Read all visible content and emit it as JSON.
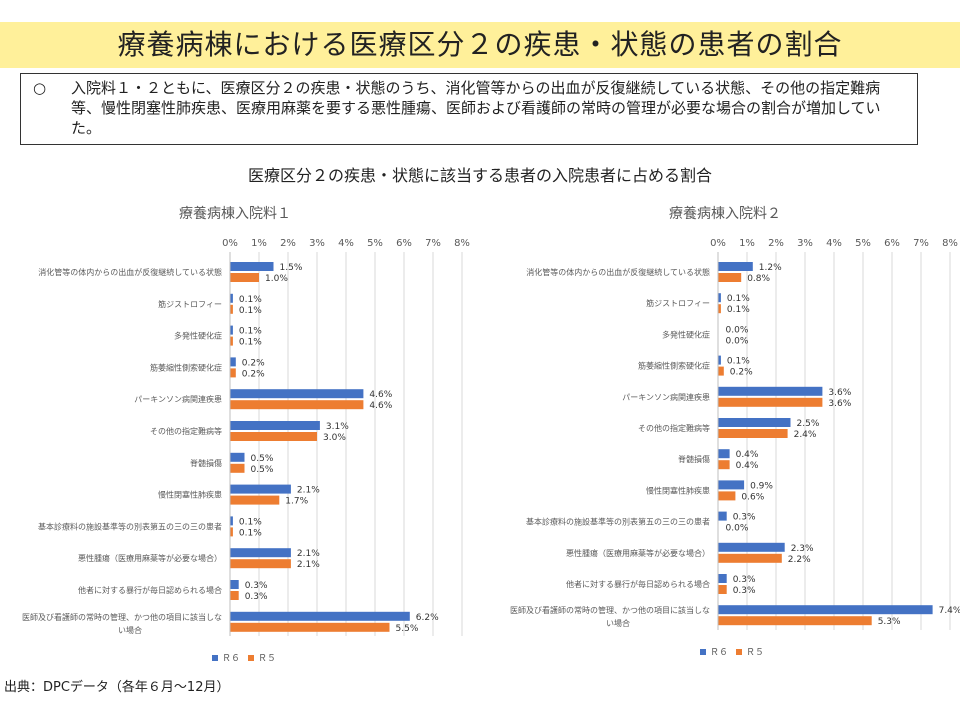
{
  "title": "療養病棟における医療区分２の疾患・状態の患者の割合",
  "note": {
    "bullet": "○",
    "text": "入院料１・２ともに、医療区分２の疾患・状態のうち、消化管等からの出血が反復継続している状態、その他の指定難病等、慢性閉塞性肺疾患、医療用麻薬を要する悪性腫瘍、医師および看護師の常時の管理が必要な場合の割合が増加していた。"
  },
  "main_caption": "医療区分２の疾患・状態に該当する患者の入院患者に占める割合",
  "source": "出典：DPCデータ（各年６月～12月）",
  "colors": {
    "r6": "#4472c4",
    "r5": "#ed7d31",
    "grid": "#d9d9d9",
    "axis_text": "#595959"
  },
  "chart_data": [
    {
      "type": "bar",
      "orientation": "horizontal",
      "title": "療養病棟入院料１",
      "xlim": [
        0,
        8
      ],
      "x_ticks": [
        "0%",
        "1%",
        "2%",
        "3%",
        "4%",
        "5%",
        "6%",
        "7%",
        "8%"
      ],
      "categories": [
        [
          "消化管等の体内からの出血が反復継続している状態"
        ],
        [
          "筋ジストロフィー"
        ],
        [
          "多発性硬化症"
        ],
        [
          "筋萎縮性側索硬化症"
        ],
        [
          "パーキンソン病関連疾患"
        ],
        [
          "その他の指定難病等"
        ],
        [
          "脊髄損傷"
        ],
        [
          "慢性閉塞性肺疾患"
        ],
        [
          "基本診療料の施設基準等の別表第五の三の三の患者"
        ],
        [
          "悪性腫瘍（医療用麻薬等が必要な場合）"
        ],
        [
          "他者に対する暴行が毎日認められる場合"
        ],
        [
          "医師及び看護師の常時の管理、かつ他の項目に該当しな",
          "い場合"
        ]
      ],
      "series": [
        {
          "name": "Ｒ６",
          "values": [
            1.5,
            0.1,
            0.1,
            0.2,
            4.6,
            3.1,
            0.5,
            2.1,
            0.1,
            2.1,
            0.3,
            6.2
          ],
          "labels": [
            "1.5%",
            "0.1%",
            "0.1%",
            "0.2%",
            "4.6%",
            "3.1%",
            "0.5%",
            "2.1%",
            "0.1%",
            "2.1%",
            "0.3%",
            "6.2%"
          ]
        },
        {
          "name": "Ｒ５",
          "values": [
            1.0,
            0.1,
            0.1,
            0.2,
            4.6,
            3.0,
            0.5,
            1.7,
            0.1,
            2.1,
            0.3,
            5.5
          ],
          "labels": [
            "1.0%",
            "0.1%",
            "0.1%",
            "0.2%",
            "4.6%",
            "3.0%",
            "0.5%",
            "1.7%",
            "0.1%",
            "2.1%",
            "0.3%",
            "5.5%"
          ]
        }
      ],
      "legend": "bottom-left",
      "grid": true
    },
    {
      "type": "bar",
      "orientation": "horizontal",
      "title": "療養病棟入院料２",
      "xlim": [
        0,
        8
      ],
      "x_ticks": [
        "0%",
        "1%",
        "2%",
        "3%",
        "4%",
        "5%",
        "6%",
        "7%",
        "8%"
      ],
      "categories": [
        [
          "消化管等の体内からの出血が反復継続している状態"
        ],
        [
          "筋ジストロフィー"
        ],
        [
          "多発性硬化症"
        ],
        [
          "筋萎縮性側索硬化症"
        ],
        [
          "パーキンソン病関連疾患"
        ],
        [
          "その他の指定難病等"
        ],
        [
          "脊髄損傷"
        ],
        [
          "慢性閉塞性肺疾患"
        ],
        [
          "基本診療料の施設基準等の別表第五の三の三の患者"
        ],
        [
          "悪性腫瘍（医療用麻薬等が必要な場合）"
        ],
        [
          "他者に対する暴行が毎日認められる場合"
        ],
        [
          "医師及び看護師の常時の管理、かつ他の項目に該当しな",
          "い場合"
        ]
      ],
      "series": [
        {
          "name": "Ｒ６",
          "values": [
            1.2,
            0.1,
            0.0,
            0.1,
            3.6,
            2.5,
            0.4,
            0.9,
            0.3,
            2.3,
            0.3,
            7.4
          ],
          "labels": [
            "1.2%",
            "0.1%",
            "0.0%",
            "0.1%",
            "3.6%",
            "2.5%",
            "0.4%",
            "0.9%",
            "0.3%",
            "2.3%",
            "0.3%",
            "7.4%"
          ]
        },
        {
          "name": "Ｒ５",
          "values": [
            0.8,
            0.1,
            0.0,
            0.2,
            3.6,
            2.4,
            0.4,
            0.6,
            0.0,
            2.2,
            0.3,
            5.3
          ],
          "labels": [
            "0.8%",
            "0.1%",
            "0.0%",
            "0.2%",
            "3.6%",
            "2.4%",
            "0.4%",
            "0.6%",
            "0.0%",
            "2.2%",
            "0.3%",
            "5.3%"
          ]
        }
      ],
      "legend": "bottom-left",
      "grid": true
    }
  ]
}
